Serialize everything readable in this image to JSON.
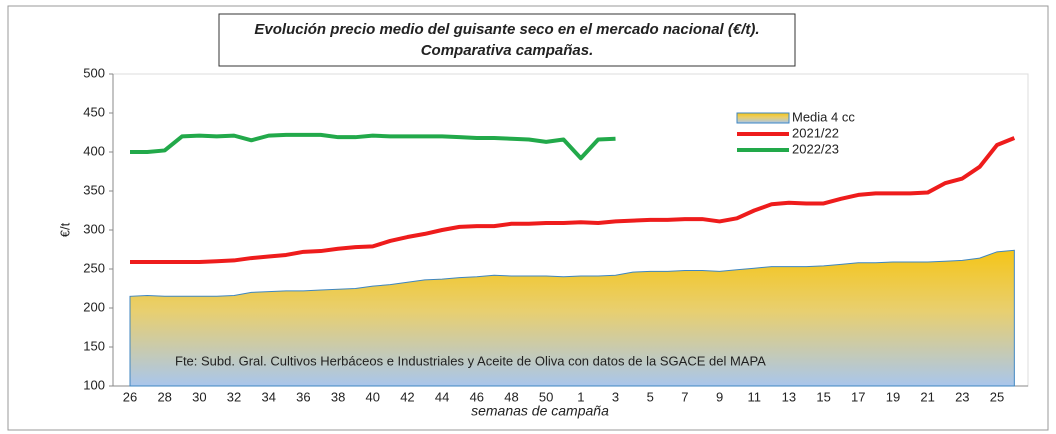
{
  "chart_data": {
    "type": "line",
    "title": [
      "Evolución precio medio del guisante seco en el mercado nacional (€/t).",
      "Comparativa campañas."
    ],
    "y_label": "€/t",
    "x_label": "semanas de campaña",
    "annotation": "Fte: Subd. Gral. Cultivos Herbáceos e Industriales y Aceite de Oliva con datos de la SGACE del MAPA",
    "categories": [
      "26",
      null,
      "28",
      null,
      "30",
      null,
      "32",
      null,
      "34",
      null,
      "36",
      null,
      "38",
      null,
      "40",
      null,
      "42",
      null,
      "44",
      null,
      "46",
      null,
      "48",
      null,
      "50",
      null,
      "1",
      null,
      "3",
      null,
      "5",
      null,
      "7",
      null,
      "9",
      null,
      "11",
      null,
      "13",
      null,
      "15",
      null,
      "17",
      null,
      "19",
      null,
      "21",
      null,
      "23",
      null,
      "25",
      null
    ],
    "ylim": [
      100,
      500
    ],
    "yticks": [
      100,
      150,
      200,
      250,
      300,
      350,
      400,
      450,
      500
    ],
    "series": [
      {
        "name": "Media 4 cc",
        "kind": "area",
        "color": "#3f86c0",
        "values": [
          215,
          216,
          215,
          215,
          215,
          215,
          216,
          220,
          221,
          222,
          222,
          223,
          224,
          225,
          228,
          230,
          233,
          236,
          237,
          239,
          240,
          242,
          241,
          241,
          241,
          240,
          241,
          241,
          242,
          246,
          247,
          247,
          248,
          248,
          247,
          249,
          251,
          253,
          253,
          253,
          254,
          256,
          258,
          258,
          259,
          259,
          259,
          260,
          261,
          264,
          272,
          274
        ]
      },
      {
        "name": "2021/22",
        "kind": "line",
        "color": "#ee1c1c",
        "values": [
          259,
          259,
          259,
          259,
          259,
          260,
          261,
          264,
          266,
          268,
          272,
          273,
          276,
          278,
          279,
          286,
          291,
          295,
          300,
          304,
          305,
          305,
          308,
          308,
          309,
          309,
          310,
          309,
          311,
          312,
          313,
          313,
          314,
          314,
          311,
          315,
          325,
          333,
          335,
          334,
          334,
          340,
          345,
          347,
          347,
          347,
          348,
          360,
          366,
          381,
          409,
          418
        ]
      },
      {
        "name": "2022/23",
        "kind": "line",
        "color": "#22a94a",
        "values": [
          400,
          400,
          402,
          420,
          421,
          420,
          421,
          415,
          421,
          422,
          422,
          422,
          419,
          419,
          421,
          420,
          420,
          420,
          420,
          419,
          418,
          418,
          417,
          416,
          413,
          416,
          392,
          416,
          417,
          null,
          null,
          null,
          null,
          null,
          null,
          null,
          null,
          null,
          null,
          null,
          null,
          null,
          null,
          null,
          null,
          null,
          null,
          null,
          null,
          null,
          null,
          null
        ]
      }
    ]
  }
}
